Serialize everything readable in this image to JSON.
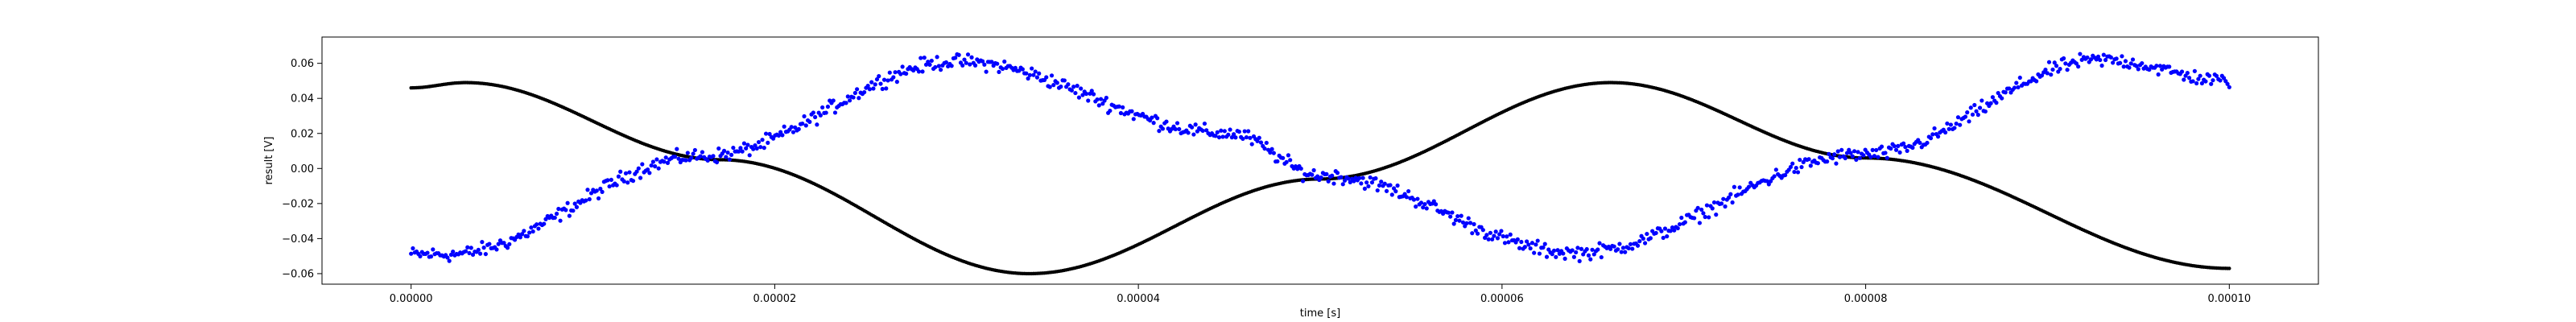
{
  "chart_data": {
    "type": "scatter",
    "title": "",
    "xlabel": "time [s]",
    "ylabel": "result [V]",
    "xlim": [
      -4.9e-06,
      0.0001049
    ],
    "ylim": [
      -0.066,
      0.075
    ],
    "xticks": [
      0,
      2e-05,
      4e-05,
      6e-05,
      8e-05,
      0.0001
    ],
    "xtick_labels": [
      "0.00000",
      "0.00002",
      "0.00004",
      "0.00006",
      "0.00008",
      "0.00010"
    ],
    "yticks": [
      -0.06,
      -0.04,
      -0.02,
      0.0,
      0.02,
      0.04,
      0.06
    ],
    "ytick_labels": [
      "−0.06",
      "−0.04",
      "−0.02",
      "0.00",
      "0.02",
      "0.04",
      "0.06"
    ],
    "grid": false,
    "legend": false,
    "series": [
      {
        "color": "#000000",
        "marker": "dot",
        "x_range": [
          0,
          0.0001
        ],
        "n_points": 1000,
        "sample_points": [
          [
            0,
            0.046
          ],
          [
            3e-06,
            0.049
          ],
          [
            1.7e-05,
            0.005
          ],
          [
            3.4e-05,
            -0.06
          ],
          [
            5e-05,
            -0.006
          ],
          [
            6.6e-05,
            0.049
          ],
          [
            8e-05,
            0.006
          ],
          [
            0.0001,
            -0.057
          ]
        ]
      },
      {
        "color": "#0000ff",
        "marker": "dot",
        "x_range": [
          0,
          0.0001
        ],
        "n_points": 1000,
        "sample_points": [
          [
            0,
            -0.049
          ],
          [
            2e-06,
            -0.049
          ],
          [
            1.6e-05,
            0.007
          ],
          [
            3e-05,
            0.061
          ],
          [
            4.5e-05,
            0.02
          ],
          [
            5e-05,
            -0.004
          ],
          [
            6.4e-05,
            -0.048
          ],
          [
            8e-05,
            0.008
          ],
          [
            9.3e-05,
            0.062
          ],
          [
            0.0001,
            0.05
          ]
        ]
      }
    ]
  }
}
